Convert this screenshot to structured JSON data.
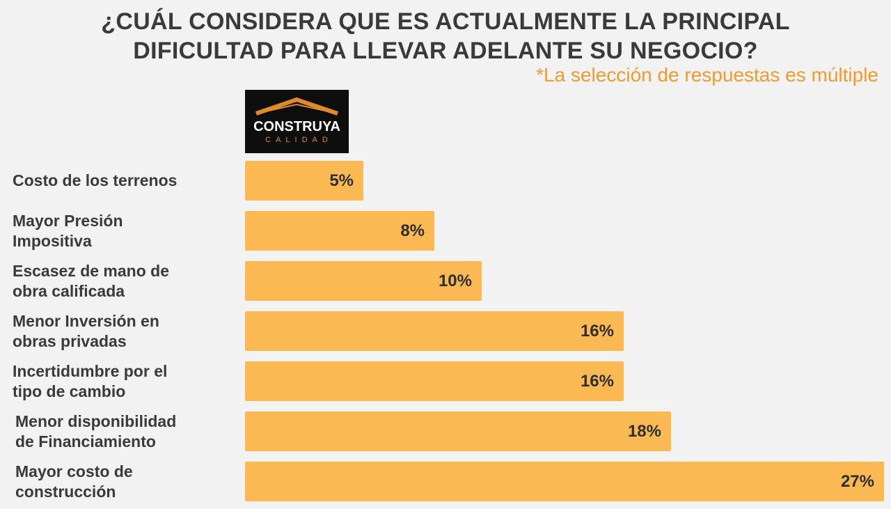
{
  "title": "¿CUÁL CONSIDERA QUE ES ACTUALMENTE LA PRINCIPAL\nDIFICULTAD PARA LLEVAR ADELANTE SU NEGOCIO?",
  "subtitle": "*La selección de respuestas es múltiple",
  "logo": {
    "name": "CONSTRUYA",
    "tagline": "CALIDAD",
    "icon": "roof-icon"
  },
  "colors": {
    "bar": "#fbb953",
    "subtitle": "#f39a2e",
    "text": "#3a3a3a",
    "background": "#f2f2f2"
  },
  "chart_data": {
    "type": "bar",
    "orientation": "horizontal",
    "title": "¿CUÁL CONSIDERA QUE ES ACTUALMENTE LA PRINCIPAL DIFICULTAD PARA LLEVAR ADELANTE SU NEGOCIO?",
    "subtitle": "*La selección de respuestas es múltiple",
    "categories": [
      "Costo de los terrenos",
      "Mayor Presión\nImpositiva",
      "Escasez de mano de\nobra calificada",
      "Menor Inversión en\nobras privadas",
      "Incertidumbre por el\ntipo de cambio",
      "Menor disponibilidad\nde Financiamiento",
      "Mayor costo de\nconstrucción"
    ],
    "values": [
      5,
      8,
      10,
      16,
      16,
      18,
      27
    ],
    "value_labels": [
      "5%",
      "8%",
      "10%",
      "16%",
      "16%",
      "18%",
      "27%"
    ],
    "xlim": [
      0,
      27
    ],
    "grid": false,
    "legend": "none"
  }
}
